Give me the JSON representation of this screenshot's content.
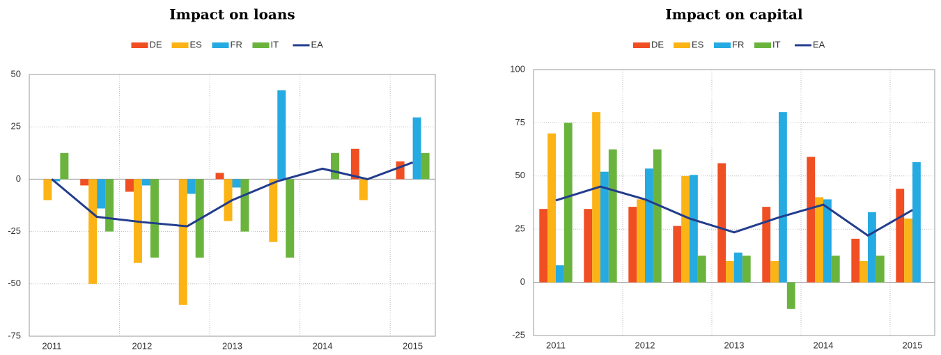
{
  "chart_data": [
    {
      "type": "bar",
      "title": "Impact on loans",
      "categories": [
        "2011",
        null,
        "2012",
        null,
        "2013",
        null,
        "2014",
        null,
        "2015"
      ],
      "series": [
        {
          "name": "DE",
          "color": "#f04e23",
          "values": [
            0,
            -3,
            -6,
            0,
            3,
            0,
            0,
            14.5,
            8.5
          ]
        },
        {
          "name": "ES",
          "color": "#fbb316",
          "values": [
            -10,
            -50,
            -40,
            -60,
            -20,
            -30,
            0,
            -10,
            0
          ]
        },
        {
          "name": "FR",
          "color": "#25aae1",
          "values": [
            -1,
            -14,
            -3,
            -7,
            -4,
            42.5,
            0,
            0,
            29.5
          ]
        },
        {
          "name": "IT",
          "color": "#6ab43e",
          "values": [
            12.5,
            -25,
            -37.5,
            -37.5,
            -25,
            -37.5,
            12.5,
            0,
            12.5
          ]
        },
        {
          "name": "EA",
          "color": "#233d8c",
          "type": "line",
          "values": [
            0,
            -18,
            -20.5,
            -22.5,
            -10,
            -1,
            5,
            0,
            8
          ]
        }
      ],
      "ylim": [
        -75,
        50
      ],
      "yticks": [
        -75,
        -50,
        -25,
        0,
        25,
        50
      ],
      "grid": true
    },
    {
      "type": "bar",
      "title": "Impact on capital",
      "categories": [
        "2011",
        null,
        "2012",
        null,
        "2013",
        null,
        "2014",
        null,
        "2015"
      ],
      "series": [
        {
          "name": "DE",
          "color": "#f04e23",
          "values": [
            34.5,
            34.5,
            35.5,
            26.5,
            56,
            35.5,
            59,
            20.5,
            44
          ]
        },
        {
          "name": "ES",
          "color": "#fbb316",
          "values": [
            70,
            80,
            39,
            50,
            10,
            10,
            40,
            10,
            30
          ]
        },
        {
          "name": "FR",
          "color": "#25aae1",
          "values": [
            8,
            52,
            53.5,
            50.5,
            14,
            80,
            39,
            33,
            56.5
          ]
        },
        {
          "name": "IT",
          "color": "#6ab43e",
          "values": [
            75,
            62.5,
            62.5,
            12.5,
            12.5,
            -12.5,
            12.5,
            12.5,
            0
          ]
        },
        {
          "name": "EA",
          "color": "#233d8c",
          "type": "line",
          "values": [
            38.5,
            45,
            39,
            30,
            23.5,
            30.5,
            36.5,
            22,
            34
          ]
        }
      ],
      "ylim": [
        -25,
        100
      ],
      "yticks": [
        -25,
        0,
        25,
        50,
        75,
        100
      ],
      "grid": true
    }
  ]
}
